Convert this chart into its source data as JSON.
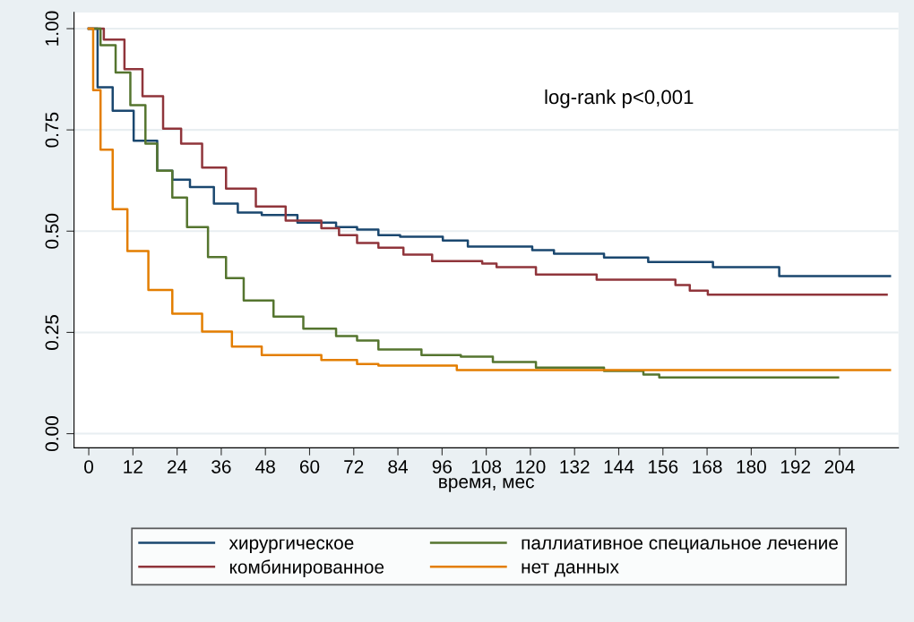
{
  "chart_data": {
    "type": "step",
    "xlabel": "время, мес",
    "annotations": [
      "log-rank p<0,001"
    ],
    "xlim": [
      -4,
      220
    ],
    "xticks": [
      0,
      12,
      24,
      36,
      48,
      60,
      72,
      84,
      96,
      108,
      120,
      132,
      144,
      156,
      168,
      180,
      192,
      204
    ],
    "ylim": [
      -0.035,
      1.04
    ],
    "yticks": [
      {
        "value": 0,
        "label": "0.00"
      },
      {
        "value": 0.25,
        "label": "0.25"
      },
      {
        "value": 0.5,
        "label": "0.50"
      },
      {
        "value": 0.75,
        "label": "0.75"
      },
      {
        "value": 1,
        "label": "1.00"
      }
    ],
    "grid": "y",
    "legend": "bottom",
    "marker": "none",
    "line_style": "solid",
    "series": [
      {
        "name": "хирургическое",
        "color": "#1a476f",
        "x": [
          0,
          2.4,
          6.5,
          12.2,
          18.6,
          22.7,
          27.5,
          34,
          40.5,
          47,
          56.7,
          67.2,
          72.9,
          78.7,
          84.6,
          96.2,
          103,
          120.5,
          126.4,
          140,
          152,
          169.6,
          187.6,
          217.7
        ],
        "values": [
          1,
          0.855,
          0.797,
          0.723,
          0.649,
          0.627,
          0.609,
          0.568,
          0.546,
          0.54,
          0.521,
          0.51,
          0.504,
          0.49,
          0.486,
          0.477,
          0.462,
          0.453,
          0.444,
          0.435,
          0.424,
          0.411,
          0.389,
          0.389
        ]
      },
      {
        "name": "комбинированное",
        "color": "#90353b",
        "x": [
          0,
          4.1,
          9.7,
          14.6,
          20.2,
          25.1,
          30.8,
          37.3,
          45.4,
          53.5,
          63.2,
          68,
          72.9,
          78.7,
          85.5,
          93.3,
          106.9,
          110.8,
          121.5,
          138,
          159.4,
          163.3,
          168.2,
          216.8
        ],
        "values": [
          1,
          0.973,
          0.9,
          0.833,
          0.753,
          0.716,
          0.657,
          0.605,
          0.561,
          0.526,
          0.507,
          0.49,
          0.471,
          0.459,
          0.442,
          0.426,
          0.42,
          0.411,
          0.393,
          0.38,
          0.367,
          0.353,
          0.343,
          0.343
        ]
      },
      {
        "name": "паллиативное специальное лечение",
        "color": "#55752f",
        "x": [
          0,
          3.2,
          7.3,
          11.3,
          15.4,
          18.6,
          22.7,
          26.7,
          32.4,
          37.3,
          42.1,
          50.2,
          58.3,
          67.2,
          72.9,
          78.7,
          90.4,
          101.1,
          109.8,
          121.5,
          140,
          150.7,
          155,
          203.6
        ],
        "values": [
          1,
          0.959,
          0.892,
          0.811,
          0.716,
          0.649,
          0.583,
          0.51,
          0.436,
          0.384,
          0.329,
          0.289,
          0.259,
          0.241,
          0.23,
          0.208,
          0.194,
          0.19,
          0.177,
          0.163,
          0.155,
          0.146,
          0.139,
          0.139
        ]
      },
      {
        "name": "нет данных",
        "color": "#e37e00",
        "x": [
          0,
          1.2,
          3.2,
          6.5,
          10.5,
          16.2,
          22.7,
          30.8,
          38.9,
          47,
          63.2,
          72.9,
          78.7,
          100,
          217.7
        ],
        "values": [
          1,
          0.848,
          0.701,
          0.554,
          0.451,
          0.355,
          0.296,
          0.252,
          0.215,
          0.194,
          0.182,
          0.172,
          0.168,
          0.157,
          0.157
        ]
      }
    ]
  }
}
